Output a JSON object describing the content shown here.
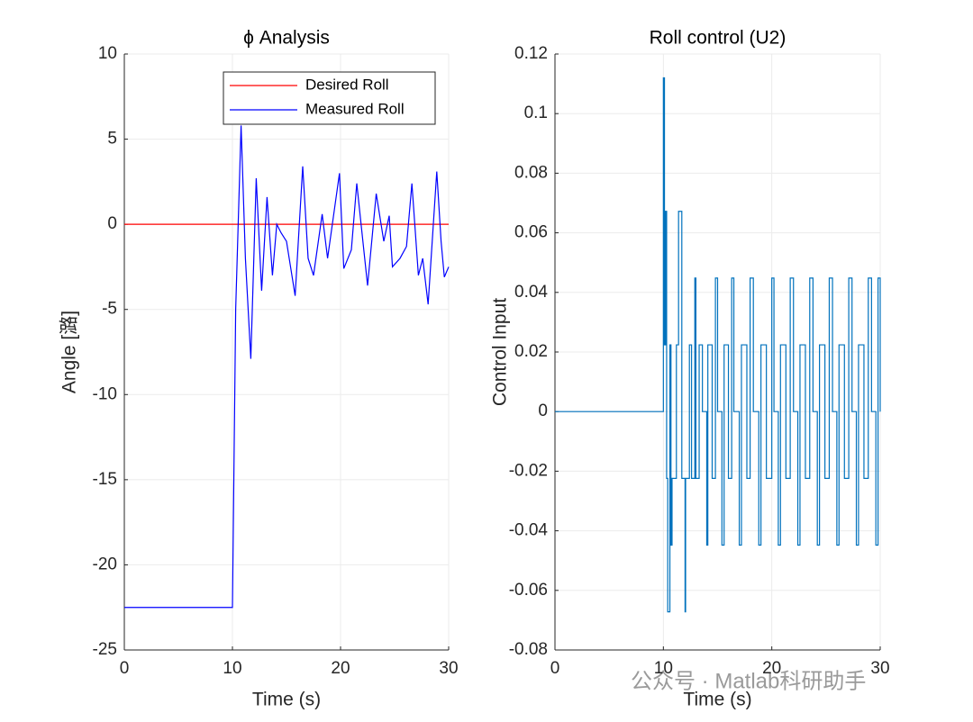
{
  "chart_data": [
    {
      "type": "line",
      "title": "ϕ Analysis",
      "x_label": "Time (s)",
      "y_label": "Angle [潞]",
      "xlim": [
        0,
        30
      ],
      "xticks": [
        0,
        10,
        20,
        30
      ],
      "ylim": [
        -25,
        10
      ],
      "yticks": [
        -25,
        -20,
        -15,
        -10,
        -5,
        0,
        5,
        10
      ],
      "grid": true,
      "legend": "upper right",
      "series": [
        {
          "name": "Desired Roll",
          "color": "#ff0000",
          "x": [
            0,
            30
          ],
          "values": [
            0,
            0
          ]
        },
        {
          "name": "Measured Roll",
          "color": "#0000ff",
          "x": [
            0,
            10,
            10.3,
            10.8,
            11.2,
            11.7,
            12.2,
            12.7,
            13.2,
            13.7,
            14.1,
            14.5,
            15,
            15.8,
            16.5,
            17,
            17.5,
            18.3,
            18.8,
            19.9,
            20.3,
            21,
            21.5,
            22.5,
            23.3,
            24,
            24.5,
            24.8,
            25.5,
            26.1,
            26.6,
            27.2,
            27.6,
            28.1,
            28.9,
            29.3,
            29.6,
            30
          ],
          "values": [
            -22.5,
            -22.5,
            -5,
            5.8,
            -2,
            -7.9,
            2.7,
            -3.9,
            1.6,
            -3,
            0,
            -0.5,
            -1,
            -4.2,
            3.4,
            -2,
            -3,
            0.6,
            -2,
            3,
            -2.6,
            -1.5,
            2.4,
            -3.6,
            1.8,
            -1,
            0.5,
            -2.5,
            -2,
            -1.3,
            2.4,
            -3,
            -2,
            -4.7,
            3.1,
            -1,
            -3.1,
            -2.5
          ]
        }
      ]
    },
    {
      "type": "step",
      "title": "Roll control (U2)",
      "x_label": "Time (s)",
      "y_label": "Control Input",
      "xlim": [
        0,
        30
      ],
      "xticks": [
        0,
        10,
        20,
        30
      ],
      "ylim": [
        -0.08,
        0.12
      ],
      "yticks": [
        -0.08,
        -0.06,
        -0.04,
        -0.02,
        0,
        0.02,
        0.04,
        0.06,
        0.08,
        0.1,
        0.12
      ],
      "grid": true,
      "series": [
        {
          "name": "U2",
          "color": "#0072bd",
          "x": [
            0,
            10,
            10.1,
            10.2,
            10.3,
            10.4,
            10.6,
            10.7,
            10.8,
            11.2,
            11.4,
            11.7,
            12,
            12.05,
            12.4,
            12.6,
            12.9,
            13,
            13.3,
            13.6,
            14,
            14.1,
            14.5,
            14.8,
            15,
            15.4,
            15.6,
            16,
            16.3,
            16.5,
            17,
            17.2,
            17.7,
            18,
            18.3,
            18.8,
            19,
            19.5,
            20,
            20.2,
            20.6,
            20.8,
            21.3,
            21.7,
            22,
            22.4,
            22.6,
            23.1,
            23.5,
            23.8,
            24.2,
            24.4,
            24.9,
            25.3,
            25.6,
            26,
            26.2,
            26.7,
            27.1,
            27.4,
            27.8,
            28,
            28.5,
            28.9,
            29.2,
            29.6,
            29.8,
            30
          ],
          "values": [
            0,
            0.112,
            0.0224,
            0.0672,
            -0.0224,
            -0.0672,
            0.0224,
            -0.0448,
            -0.0224,
            0.0224,
            0.0672,
            -0.0224,
            -0.0672,
            -0.0224,
            0.0224,
            -0.0224,
            0.0448,
            -0.0224,
            0.0224,
            0,
            -0.0448,
            0.0224,
            -0.0224,
            0.0448,
            0,
            -0.0448,
            0.0224,
            -0.0224,
            0.0448,
            0,
            -0.0448,
            0.0224,
            -0.0224,
            0.0448,
            0,
            -0.0448,
            0.0224,
            -0.0224,
            0.0448,
            0,
            -0.0448,
            0.0224,
            -0.0224,
            0.0448,
            0,
            -0.0448,
            0.0224,
            -0.0224,
            0.0448,
            0,
            -0.0448,
            0.0224,
            -0.0224,
            0.0448,
            0,
            -0.0448,
            0.0224,
            -0.0224,
            0.0448,
            0,
            -0.0448,
            0.0224,
            -0.0224,
            0.0448,
            0,
            -0.0448,
            0.0448,
            0
          ]
        }
      ]
    }
  ],
  "watermark": "公众号 · Matlab科研助手"
}
